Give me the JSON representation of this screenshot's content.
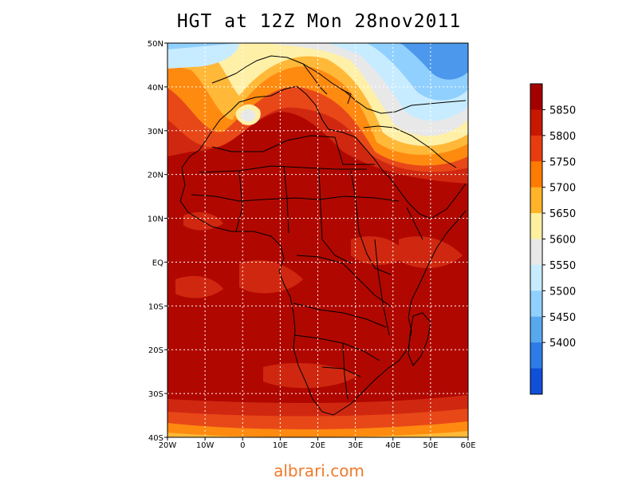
{
  "title": "HGT at 12Z Mon 28nov2011",
  "watermark": "albrari.com",
  "lat_labels": [
    "50N",
    "40N",
    "30N",
    "20N",
    "10N",
    "EQ",
    "10S",
    "20S",
    "30S",
    "40S"
  ],
  "lon_labels": [
    "20W",
    "10W",
    "0",
    "10E",
    "20E",
    "30E",
    "40E",
    "50E",
    "60E"
  ],
  "colorbar": {
    "levels": [
      "5850",
      "5800",
      "5750",
      "5700",
      "5650",
      "5600",
      "5550",
      "5500",
      "5450",
      "5400"
    ],
    "colors": [
      "#a50000",
      "#c81800",
      "#e83c10",
      "#ff7a00",
      "#ffb428",
      "#fff0a0",
      "#e8e8e8",
      "#c8ecff",
      "#90d0ff",
      "#58a8f0",
      "#2c7ce8",
      "#1050d8"
    ]
  },
  "field_colors": {
    "deep": "#b00800",
    "mid": "#d02810",
    "high_red": "#e84818",
    "orange": "#ff8a10",
    "lt_orange": "#ffb838",
    "yellow": "#fff0a8",
    "gray": "#e8e8e8",
    "lt_blue": "#c8ecff",
    "blue": "#90d0ff",
    "dk_blue": "#4c98ec"
  }
}
